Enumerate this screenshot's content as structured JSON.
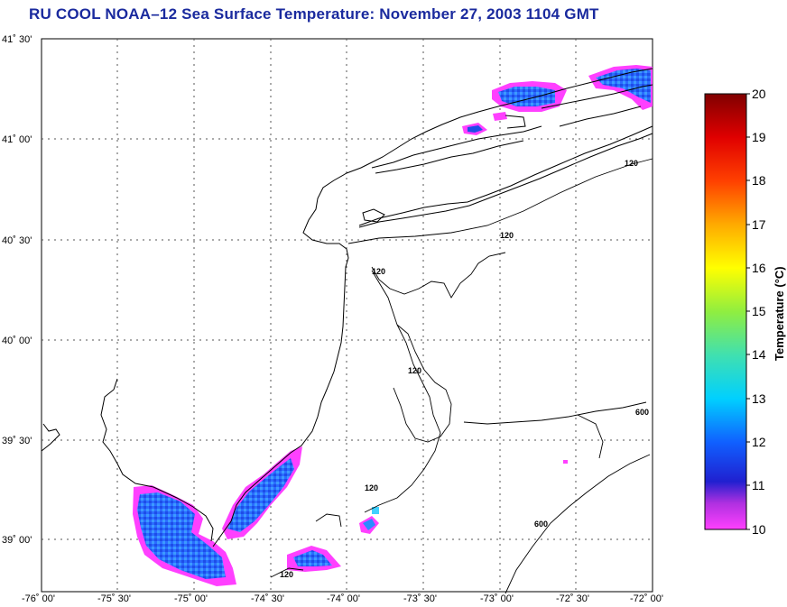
{
  "title": "RU COOL  NOAA–12  Sea Surface Temperature:  November 27, 2003 1104 GMT",
  "map": {
    "lat_labels": [
      "41˚ 30'",
      "41˚ 00'",
      "40˚ 30'",
      "40˚ 00'",
      "39˚ 30'",
      "39˚ 00'"
    ],
    "lon_labels": [
      "-76˚ 00'",
      "-75˚ 30'",
      "-75˚ 00'",
      "-74˚ 30'",
      "-74˚ 00'",
      "-73˚ 30'",
      "-73˚ 00'",
      "-72˚ 30'",
      "-72˚ 00'"
    ],
    "bathymetry_labels": [
      "120",
      "120",
      "120",
      "120",
      "120",
      "600",
      "600",
      "120"
    ]
  },
  "colorbar": {
    "title": "Temperature (°C)",
    "ticks": [
      "20",
      "19",
      "18",
      "17",
      "16",
      "15",
      "14",
      "13",
      "12",
      "11",
      "10"
    ],
    "range": [
      10,
      20
    ],
    "colors": [
      "#ff40ff",
      "#8a2be2",
      "#0000e0",
      "#1e90ff",
      "#00e5ff",
      "#40e0a0",
      "#7fff00",
      "#ffff00",
      "#ff9900",
      "#ff2200",
      "#8b0000"
    ]
  }
}
